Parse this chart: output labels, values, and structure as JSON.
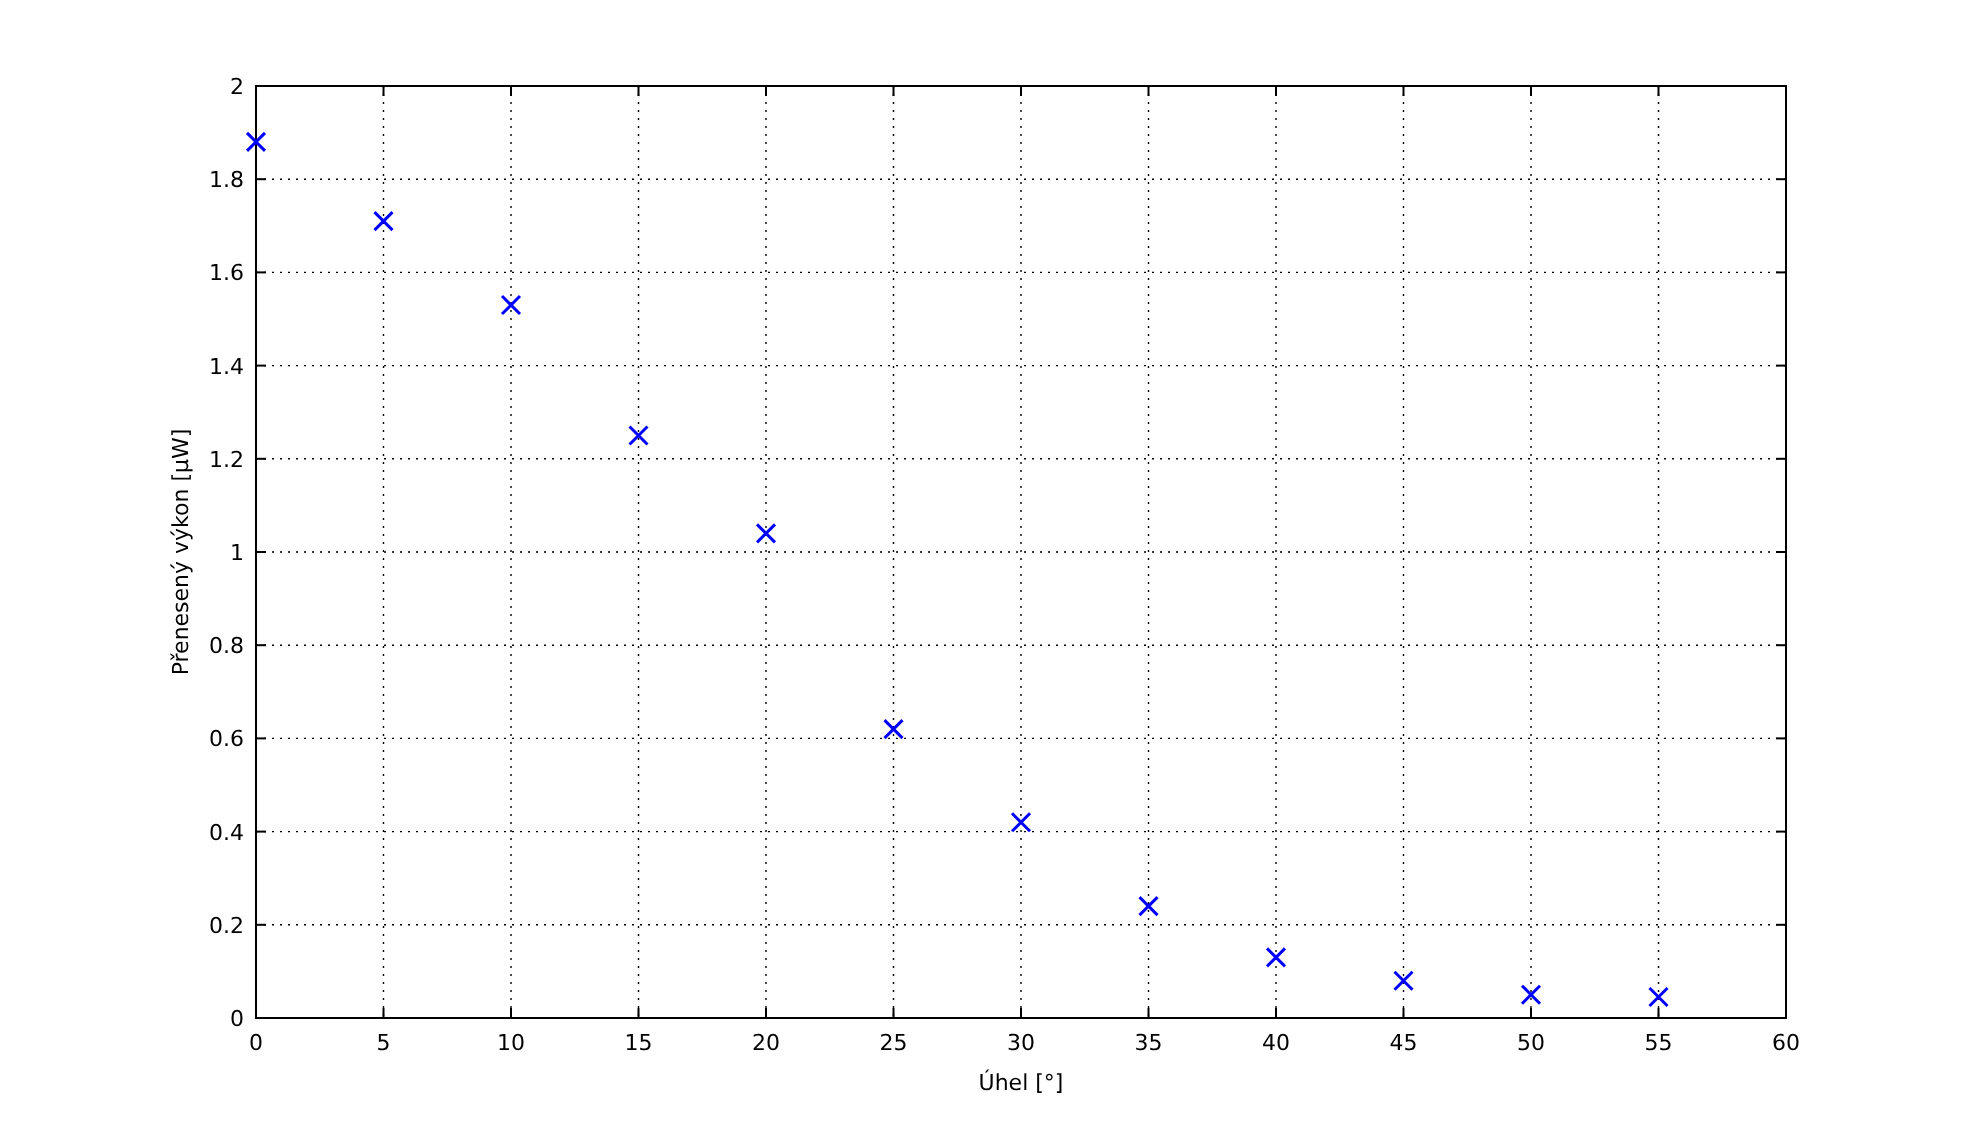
{
  "chart_data": {
    "type": "scatter",
    "xlabel": "Úhel [°]",
    "ylabel": "Přenesený výkon [μW]",
    "x": [
      0,
      5,
      10,
      15,
      20,
      25,
      30,
      35,
      40,
      45,
      50,
      55
    ],
    "series": [
      {
        "color": "#0000ff",
        "values": [
          1.88,
          1.71,
          1.53,
          1.25,
          1.04,
          0.62,
          0.42,
          0.24,
          0.13,
          0.08,
          0.05,
          0.045
        ]
      }
    ],
    "xlim": [
      0,
      60
    ],
    "xticks": [
      0,
      5,
      10,
      15,
      20,
      25,
      30,
      35,
      40,
      45,
      50,
      55,
      60
    ],
    "ylim": [
      0,
      2
    ],
    "yticks": [
      0,
      0.2,
      0.4,
      0.6,
      0.8,
      1,
      1.2,
      1.4,
      1.6,
      1.8,
      2
    ],
    "grid": true,
    "marker": "cross"
  }
}
